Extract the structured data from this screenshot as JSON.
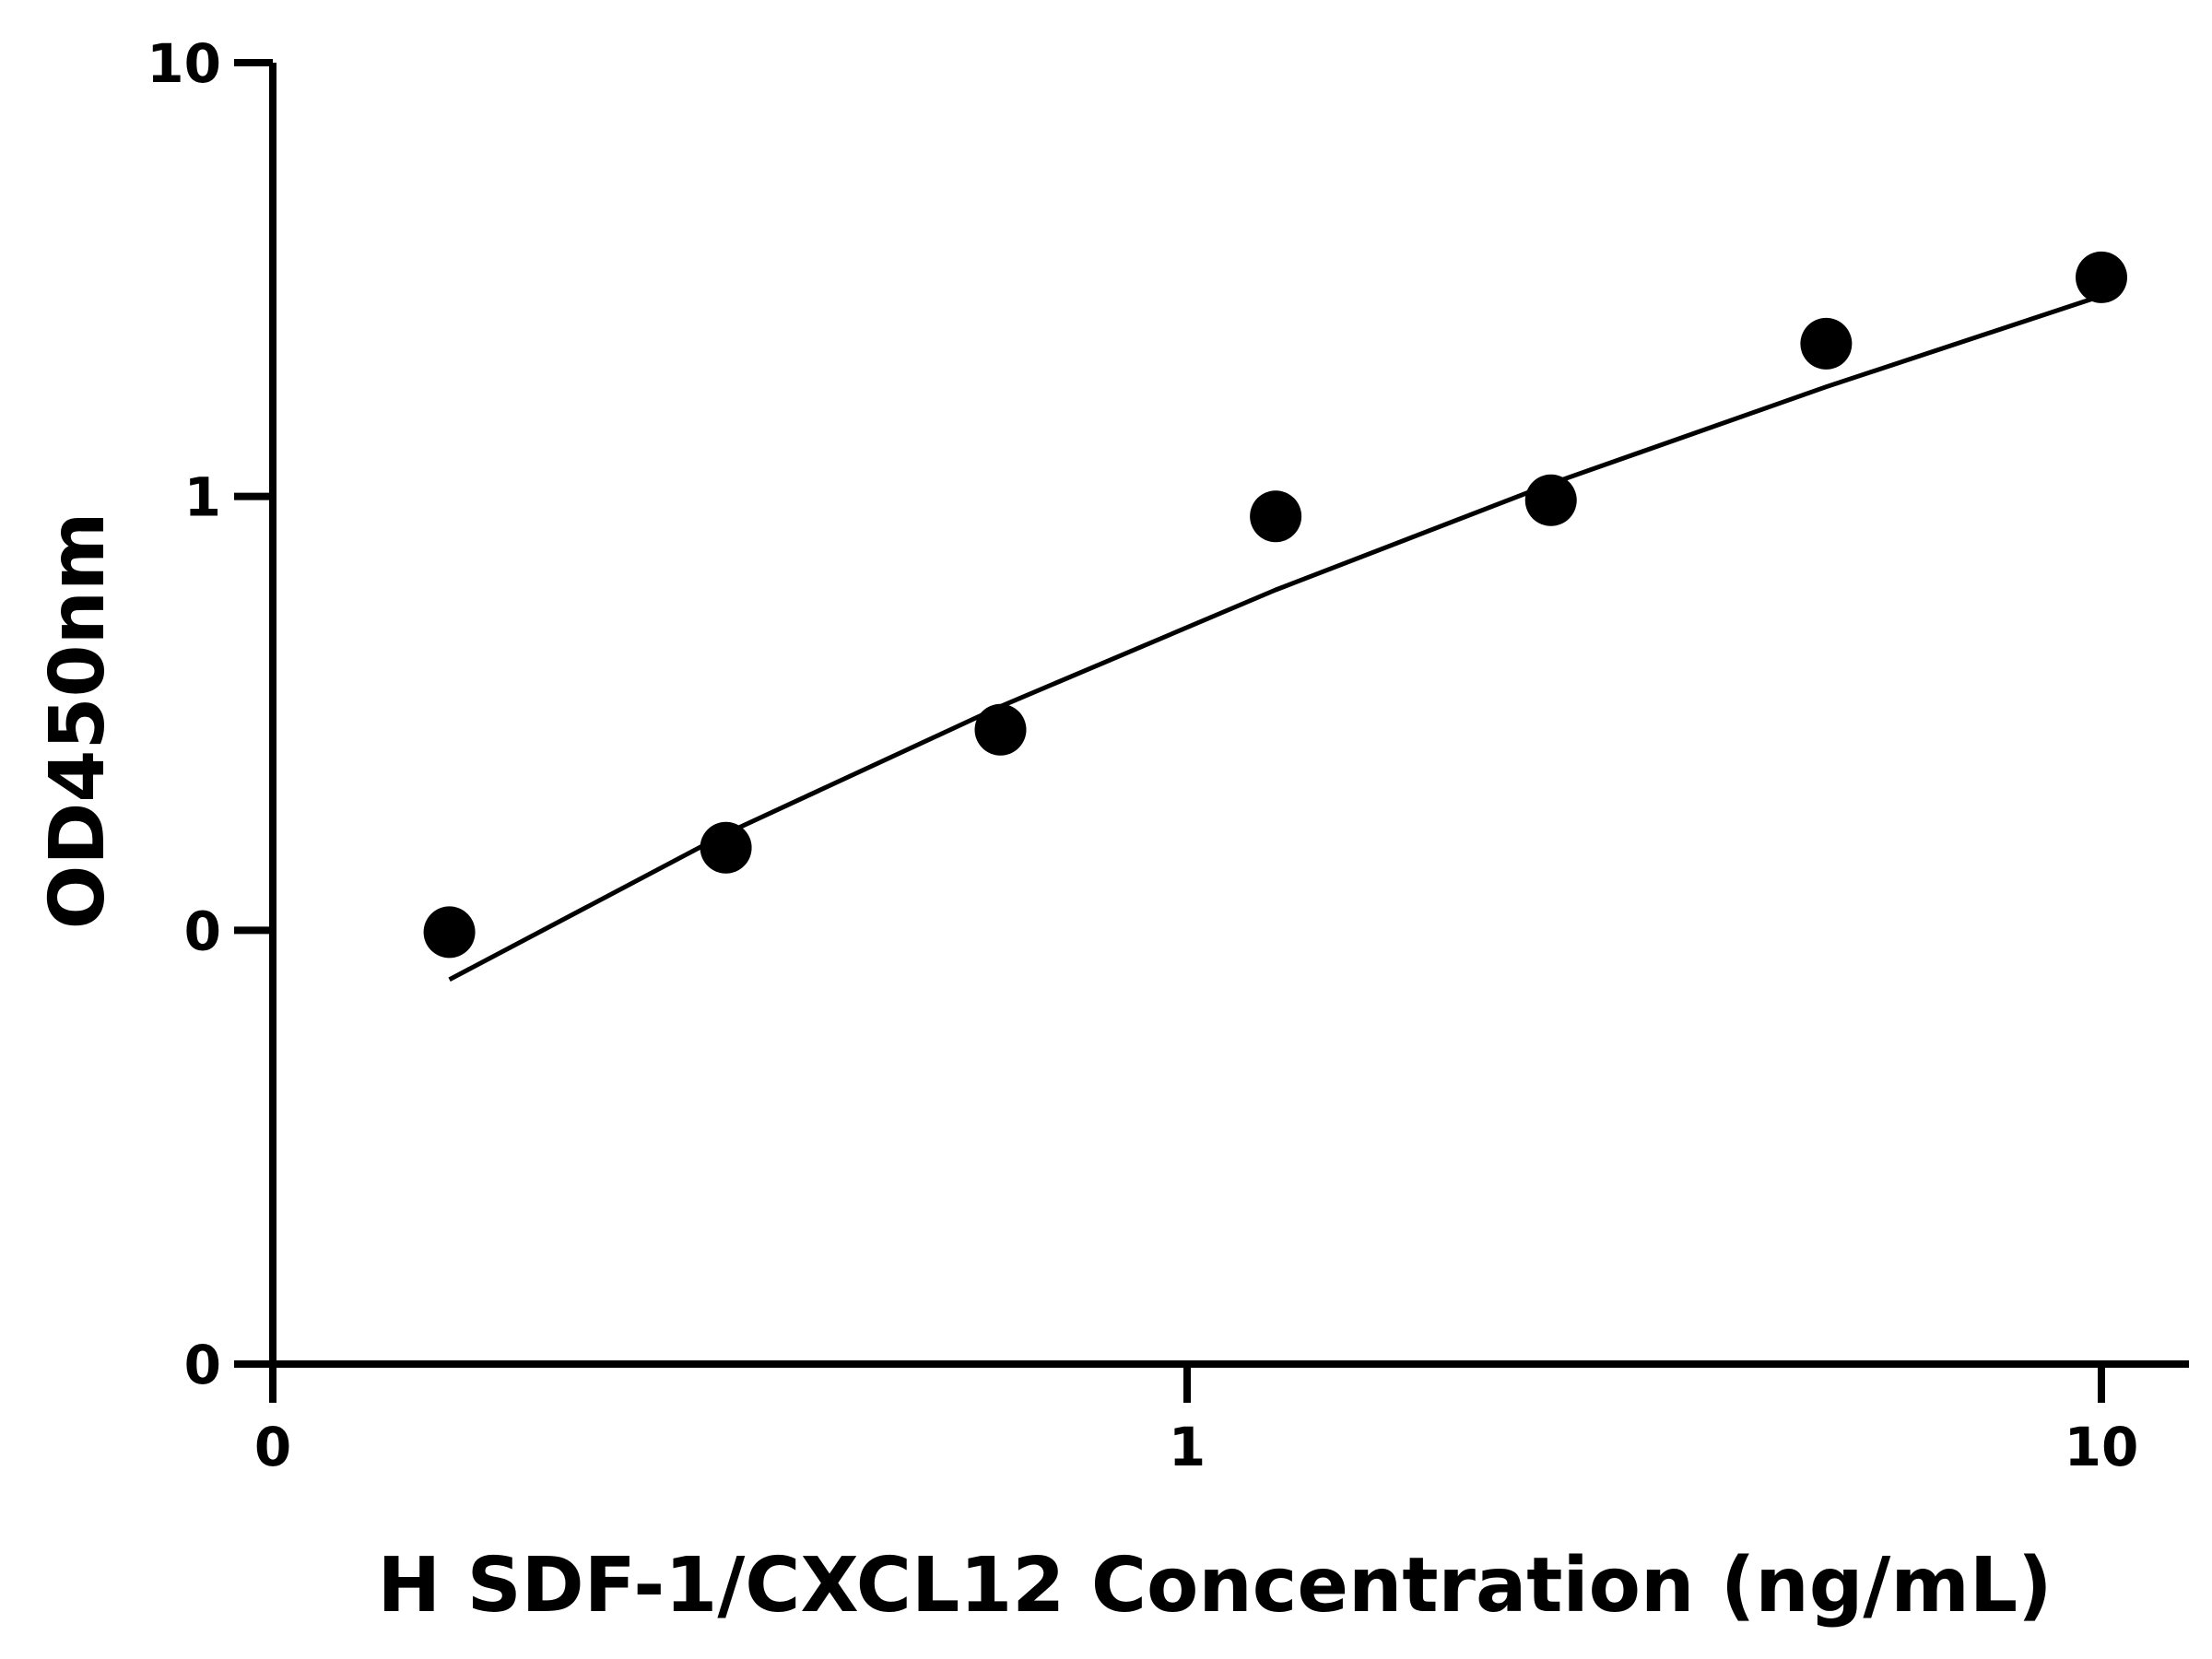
{
  "chart_data": {
    "type": "scatter",
    "title": "",
    "xlabel": "H SDF-1/CXCL12 Concentration (ng/mL)",
    "ylabel": "OD450nm",
    "x_scale": "log10",
    "y_scale": "log10",
    "xlim": [
      0.1,
      10
    ],
    "ylim": [
      0.01,
      10
    ],
    "x_ticks": [
      {
        "value": 0.1,
        "label": "0"
      },
      {
        "value": 1,
        "label": "1"
      },
      {
        "value": 10,
        "label": "10"
      }
    ],
    "y_ticks": [
      {
        "value": 0.01,
        "label": "0"
      },
      {
        "value": 0.1,
        "label": "0"
      },
      {
        "value": 1,
        "label": "1"
      },
      {
        "value": 10,
        "label": "10"
      }
    ],
    "grid": false,
    "legend": "none",
    "series": [
      {
        "kind": "points",
        "x": [
          0.156,
          0.313,
          0.625,
          1.25,
          2.5,
          5,
          10
        ],
        "y": [
          0.099,
          0.155,
          0.29,
          0.9,
          0.98,
          2.25,
          3.2
        ]
      },
      {
        "kind": "fit-line",
        "x": [
          0.156,
          0.313,
          0.625,
          1.25,
          2.5,
          5,
          10
        ],
        "y": [
          0.077,
          0.167,
          0.328,
          0.609,
          1.07,
          1.79,
          2.9
        ]
      }
    ],
    "colors": {
      "marker": "#000000",
      "line": "#000000",
      "axis": "#000000"
    }
  }
}
